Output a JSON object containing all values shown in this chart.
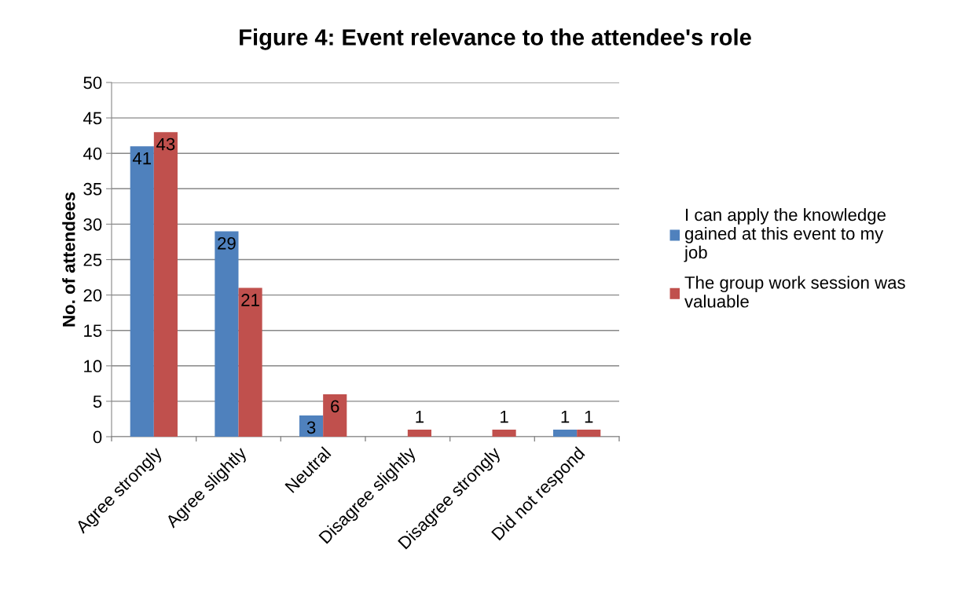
{
  "chart_data": {
    "type": "bar",
    "title": "Figure 4: Event relevance to the attendee's role",
    "ylabel": "No. of attendees",
    "categories": [
      "Agree strongly",
      "Agree slightly",
      "Neutral",
      "Disagree slightly",
      "Disagree strongly",
      "Did not respond"
    ],
    "series": [
      {
        "name": "I can apply the knowledge\ngained at this event to my\njob",
        "color": "#4f81bd",
        "values": [
          41,
          29,
          3,
          null,
          null,
          1
        ],
        "value_labels": [
          "41",
          "29",
          "3",
          null,
          null,
          "1"
        ]
      },
      {
        "name": "The group work session was\nvaluable",
        "color": "#c0504d",
        "values": [
          43,
          21,
          6,
          1,
          1,
          1
        ],
        "value_labels": [
          "43",
          "21",
          "6",
          "1",
          "1",
          "1"
        ]
      }
    ],
    "ylim": [
      0,
      50
    ],
    "yticks": [
      0,
      5,
      10,
      15,
      20,
      25,
      30,
      35,
      40,
      45,
      50
    ],
    "grid": "y",
    "legend": "right"
  }
}
